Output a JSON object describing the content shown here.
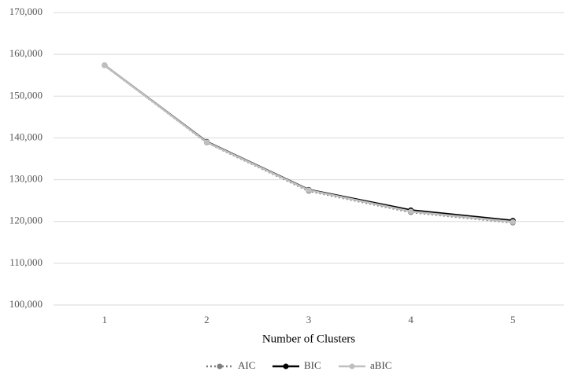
{
  "chart_data": {
    "type": "line",
    "x_label": "Number of Clusters",
    "categories": [
      "1",
      "2",
      "3",
      "4",
      "5"
    ],
    "series": [
      {
        "name": "AIC",
        "color": "#7f7f7f",
        "dash": "dotted",
        "values": [
          157400,
          138900,
          127300,
          122200,
          119700
        ]
      },
      {
        "name": "BIC",
        "color": "#000000",
        "dash": "solid",
        "values": [
          157400,
          139100,
          127600,
          122700,
          120200
        ]
      },
      {
        "name": "aBIC",
        "color": "#bfbfbf",
        "dash": "solid",
        "values": [
          157400,
          139000,
          127500,
          122400,
          119900
        ]
      }
    ],
    "ylim": [
      100000,
      170000
    ],
    "yticks": [
      {
        "value": 100000,
        "label": "100,000"
      },
      {
        "value": 110000,
        "label": "110,000"
      },
      {
        "value": 120000,
        "label": "120,000"
      },
      {
        "value": 130000,
        "label": "130,000"
      },
      {
        "value": 140000,
        "label": "140,000"
      },
      {
        "value": 150000,
        "label": "150,000"
      },
      {
        "value": 160000,
        "label": "160,000"
      },
      {
        "value": 170000,
        "label": "170,000"
      }
    ],
    "grid": true,
    "legend": "bottom"
  }
}
